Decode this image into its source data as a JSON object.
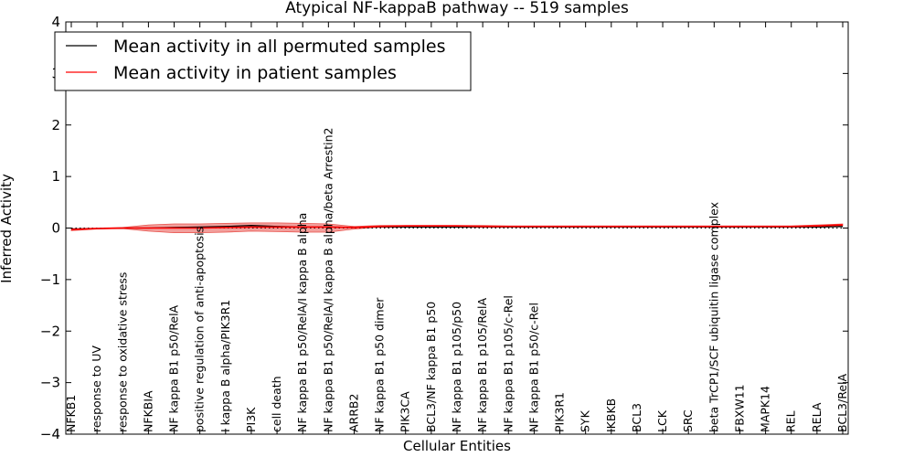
{
  "chart_data": {
    "type": "line",
    "title": "Atypical NF-kappaB pathway -- 519 samples",
    "xlabel": "Cellular Entities",
    "ylabel": "Inferred Activity",
    "ylim": [
      -4,
      4
    ],
    "yticks": [
      -4,
      -3,
      -2,
      -1,
      0,
      1,
      2,
      3,
      4
    ],
    "ytick_labels": [
      "−4",
      "−3",
      "−2",
      "−1",
      "0",
      "1",
      "2",
      "3",
      "4"
    ],
    "legend_position": "upper-left",
    "reference_line": {
      "y": 0,
      "style": "dotted"
    },
    "categories": [
      "NFKB1",
      "response to UV",
      "response to oxidative stress",
      "NFKBIA",
      "NF kappa B1 p50/RelA",
      "positive regulation of anti-apoptosis",
      "I kappa B alpha/PIK3R1",
      "PI3K",
      "cell death",
      "NF kappa B1 p50/RelA/I kappa B alpha",
      "NF kappa B1 p50/RelA/I kappa B alpha/beta Arrestin2",
      "ARRB2",
      "NF kappa B1 p50 dimer",
      "PIK3CA",
      "BCL3/NF kappa B1 p50",
      "NF kappa B1 p105/p50",
      "NF kappa B1 p105/RelA",
      "NF kappa B1 p105/c-Rel",
      "NF kappa B1 p50/c-Rel",
      "PIK3R1",
      "SYK",
      "IKBKB",
      "BCL3",
      "LCK",
      "SRC",
      "beta TrCP1/SCF ubiquitin ligase complex",
      "FBXW11",
      "MAPK14",
      "REL",
      "RELA",
      "BCL3/RelA"
    ],
    "series": [
      {
        "name": "Mean activity in all permuted samples",
        "color": "#000000",
        "values": [
          -0.02,
          -0.01,
          0.0,
          0.0,
          0.01,
          0.02,
          0.03,
          0.05,
          0.03,
          0.02,
          0.02,
          0.01,
          0.02,
          0.02,
          0.02,
          0.02,
          0.02,
          0.02,
          0.02,
          0.02,
          0.02,
          0.02,
          0.02,
          0.02,
          0.02,
          0.02,
          0.02,
          0.02,
          0.02,
          0.02,
          0.03
        ]
      },
      {
        "name": "Mean activity in patient samples",
        "color": "#ff0000",
        "band_color": "#e8504a",
        "values": [
          -0.03,
          -0.01,
          0.0,
          0.0,
          0.0,
          0.0,
          0.01,
          0.02,
          0.02,
          0.02,
          0.02,
          0.01,
          0.03,
          0.04,
          0.04,
          0.04,
          0.03,
          0.03,
          0.03,
          0.03,
          0.03,
          0.03,
          0.03,
          0.03,
          0.03,
          0.03,
          0.03,
          0.03,
          0.03,
          0.04,
          0.06
        ],
        "band_low": [
          -0.05,
          -0.02,
          -0.01,
          -0.06,
          -0.09,
          -0.09,
          -0.08,
          -0.06,
          -0.07,
          -0.08,
          -0.08,
          -0.02,
          0.02,
          0.03,
          0.03,
          0.03,
          0.03,
          0.02,
          0.02,
          0.02,
          0.02,
          0.02,
          0.02,
          0.02,
          0.02,
          0.02,
          0.02,
          0.02,
          0.02,
          0.03,
          0.04
        ],
        "band_high": [
          -0.01,
          0.0,
          0.01,
          0.06,
          0.08,
          0.08,
          0.09,
          0.1,
          0.1,
          0.09,
          0.08,
          0.03,
          0.05,
          0.05,
          0.05,
          0.05,
          0.05,
          0.04,
          0.04,
          0.04,
          0.04,
          0.04,
          0.04,
          0.04,
          0.04,
          0.04,
          0.04,
          0.04,
          0.04,
          0.06,
          0.08
        ]
      }
    ]
  }
}
